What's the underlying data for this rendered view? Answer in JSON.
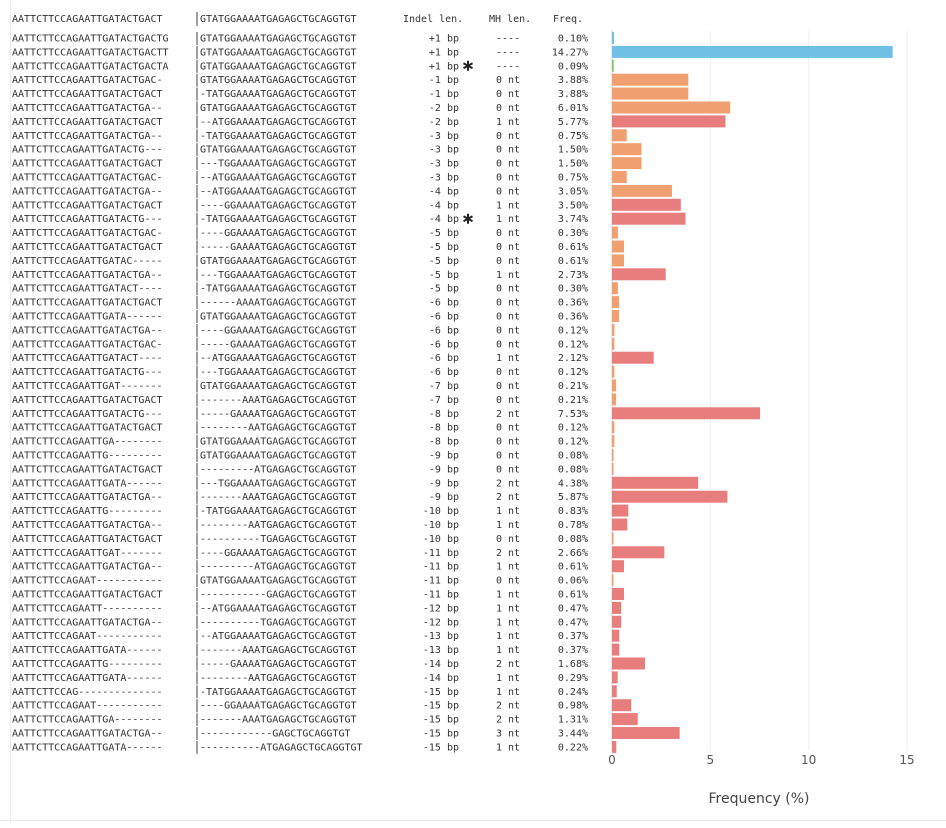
{
  "chart_data": {
    "type": "bar",
    "orientation": "horizontal",
    "header": {
      "left_seq": "AATTCTTCCAGAATTGATACTGACT",
      "right_seq": "GTATGGAAAATGAGAGCTGCAGGTGT",
      "indel": "Indel len.",
      "mh": "MH len.",
      "freq": "Freq."
    },
    "xlabel": "Frequency (%)",
    "xlim": [
      0,
      15
    ],
    "xticks": [
      0,
      5,
      10,
      15
    ],
    "grid": true,
    "colors": {
      "insertion": "#6ec1e4",
      "insertion_small": "#7ccc6e",
      "deletion_no_mh": "#f0a070",
      "deletion_mh": "#e87d7d"
    },
    "rows": [
      {
        "left": "AATTCTTCCAGAATTGATACTGACTG",
        "right": "GTATGGAAAATGAGAGCTGCAGGTGT",
        "indel": "+1 bp",
        "star": false,
        "mh": "----",
        "freq": "0.10%",
        "value": 0.1,
        "cls": "insertion"
      },
      {
        "left": "AATTCTTCCAGAATTGATACTGACTT",
        "right": "GTATGGAAAATGAGAGCTGCAGGTGT",
        "indel": "+1 bp",
        "star": false,
        "mh": "----",
        "freq": "14.27%",
        "value": 14.27,
        "cls": "insertion"
      },
      {
        "left": "AATTCTTCCAGAATTGATACTGACTA",
        "right": "GTATGGAAAATGAGAGCTGCAGGTGT",
        "indel": "+1 bp",
        "star": true,
        "mh": "----",
        "freq": "0.09%",
        "value": 0.09,
        "cls": "insertion_small"
      },
      {
        "left": "AATTCTTCCAGAATTGATACTGAC-",
        "right": "GTATGGAAAATGAGAGCTGCAGGTGT",
        "indel": "-1 bp",
        "star": false,
        "mh": "0 nt",
        "freq": "3.88%",
        "value": 3.88,
        "cls": "deletion_no_mh"
      },
      {
        "left": "AATTCTTCCAGAATTGATACTGACT",
        "right": "-TATGGAAAATGAGAGCTGCAGGTGT",
        "indel": "-1 bp",
        "star": false,
        "mh": "0 nt",
        "freq": "3.88%",
        "value": 3.88,
        "cls": "deletion_no_mh"
      },
      {
        "left": "AATTCTTCCAGAATTGATACTGA--",
        "right": "GTATGGAAAATGAGAGCTGCAGGTGT",
        "indel": "-2 bp",
        "star": false,
        "mh": "0 nt",
        "freq": "6.01%",
        "value": 6.01,
        "cls": "deletion_no_mh"
      },
      {
        "left": "AATTCTTCCAGAATTGATACTGACT",
        "right": "--ATGGAAAATGAGAGCTGCAGGTGT",
        "indel": "-2 bp",
        "star": false,
        "mh": "1 nt",
        "freq": "5.77%",
        "value": 5.77,
        "cls": "deletion_mh"
      },
      {
        "left": "AATTCTTCCAGAATTGATACTGA--",
        "right": "-TATGGAAAATGAGAGCTGCAGGTGT",
        "indel": "-3 bp",
        "star": false,
        "mh": "0 nt",
        "freq": "0.75%",
        "value": 0.75,
        "cls": "deletion_no_mh"
      },
      {
        "left": "AATTCTTCCAGAATTGATACTG---",
        "right": "GTATGGAAAATGAGAGCTGCAGGTGT",
        "indel": "-3 bp",
        "star": false,
        "mh": "0 nt",
        "freq": "1.50%",
        "value": 1.5,
        "cls": "deletion_no_mh"
      },
      {
        "left": "AATTCTTCCAGAATTGATACTGACT",
        "right": "---TGGAAAATGAGAGCTGCAGGTGT",
        "indel": "-3 bp",
        "star": false,
        "mh": "0 nt",
        "freq": "1.50%",
        "value": 1.5,
        "cls": "deletion_no_mh"
      },
      {
        "left": "AATTCTTCCAGAATTGATACTGAC-",
        "right": "--ATGGAAAATGAGAGCTGCAGGTGT",
        "indel": "-3 bp",
        "star": false,
        "mh": "0 nt",
        "freq": "0.75%",
        "value": 0.75,
        "cls": "deletion_no_mh"
      },
      {
        "left": "AATTCTTCCAGAATTGATACTGA--",
        "right": "--ATGGAAAATGAGAGCTGCAGGTGT",
        "indel": "-4 bp",
        "star": false,
        "mh": "0 nt",
        "freq": "3.05%",
        "value": 3.05,
        "cls": "deletion_no_mh"
      },
      {
        "left": "AATTCTTCCAGAATTGATACTGACT",
        "right": "----GGAAAATGAGAGCTGCAGGTGT",
        "indel": "-4 bp",
        "star": false,
        "mh": "1 nt",
        "freq": "3.50%",
        "value": 3.5,
        "cls": "deletion_mh"
      },
      {
        "left": "AATTCTTCCAGAATTGATACTG---",
        "right": "-TATGGAAAATGAGAGCTGCAGGTGT",
        "indel": "-4 bp",
        "star": true,
        "mh": "1 nt",
        "freq": "3.74%",
        "value": 3.74,
        "cls": "deletion_mh"
      },
      {
        "left": "AATTCTTCCAGAATTGATACTGAC-",
        "right": "----GGAAAATGAGAGCTGCAGGTGT",
        "indel": "-5 bp",
        "star": false,
        "mh": "0 nt",
        "freq": "0.30%",
        "value": 0.3,
        "cls": "deletion_no_mh"
      },
      {
        "left": "AATTCTTCCAGAATTGATACTGACT",
        "right": "-----GAAAATGAGAGCTGCAGGTGT",
        "indel": "-5 bp",
        "star": false,
        "mh": "0 nt",
        "freq": "0.61%",
        "value": 0.61,
        "cls": "deletion_no_mh"
      },
      {
        "left": "AATTCTTCCAGAATTGATAC-----",
        "right": "GTATGGAAAATGAGAGCTGCAGGTGT",
        "indel": "-5 bp",
        "star": false,
        "mh": "0 nt",
        "freq": "0.61%",
        "value": 0.61,
        "cls": "deletion_no_mh"
      },
      {
        "left": "AATTCTTCCAGAATTGATACTGA--",
        "right": "---TGGAAAATGAGAGCTGCAGGTGT",
        "indel": "-5 bp",
        "star": false,
        "mh": "1 nt",
        "freq": "2.73%",
        "value": 2.73,
        "cls": "deletion_mh"
      },
      {
        "left": "AATTCTTCCAGAATTGATACT----",
        "right": "-TATGGAAAATGAGAGCTGCAGGTGT",
        "indel": "-5 bp",
        "star": false,
        "mh": "0 nt",
        "freq": "0.30%",
        "value": 0.3,
        "cls": "deletion_no_mh"
      },
      {
        "left": "AATTCTTCCAGAATTGATACTGACT",
        "right": "------AAAATGAGAGCTGCAGGTGT",
        "indel": "-6 bp",
        "star": false,
        "mh": "0 nt",
        "freq": "0.36%",
        "value": 0.36,
        "cls": "deletion_no_mh"
      },
      {
        "left": "AATTCTTCCAGAATTGATA------",
        "right": "GTATGGAAAATGAGAGCTGCAGGTGT",
        "indel": "-6 bp",
        "star": false,
        "mh": "0 nt",
        "freq": "0.36%",
        "value": 0.36,
        "cls": "deletion_no_mh"
      },
      {
        "left": "AATTCTTCCAGAATTGATACTGA--",
        "right": "----GGAAAATGAGAGCTGCAGGTGT",
        "indel": "-6 bp",
        "star": false,
        "mh": "0 nt",
        "freq": "0.12%",
        "value": 0.12,
        "cls": "deletion_no_mh"
      },
      {
        "left": "AATTCTTCCAGAATTGATACTGAC-",
        "right": "-----GAAAATGAGAGCTGCAGGTGT",
        "indel": "-6 bp",
        "star": false,
        "mh": "0 nt",
        "freq": "0.12%",
        "value": 0.12,
        "cls": "deletion_no_mh"
      },
      {
        "left": "AATTCTTCCAGAATTGATACT----",
        "right": "--ATGGAAAATGAGAGCTGCAGGTGT",
        "indel": "-6 bp",
        "star": false,
        "mh": "1 nt",
        "freq": "2.12%",
        "value": 2.12,
        "cls": "deletion_mh"
      },
      {
        "left": "AATTCTTCCAGAATTGATACTG---",
        "right": "---TGGAAAATGAGAGCTGCAGGTGT",
        "indel": "-6 bp",
        "star": false,
        "mh": "0 nt",
        "freq": "0.12%",
        "value": 0.12,
        "cls": "deletion_no_mh"
      },
      {
        "left": "AATTCTTCCAGAATTGAT-------",
        "right": "GTATGGAAAATGAGAGCTGCAGGTGT",
        "indel": "-7 bp",
        "star": false,
        "mh": "0 nt",
        "freq": "0.21%",
        "value": 0.21,
        "cls": "deletion_no_mh"
      },
      {
        "left": "AATTCTTCCAGAATTGATACTGACT",
        "right": "-------AAATGAGAGCTGCAGGTGT",
        "indel": "-7 bp",
        "star": false,
        "mh": "0 nt",
        "freq": "0.21%",
        "value": 0.21,
        "cls": "deletion_no_mh"
      },
      {
        "left": "AATTCTTCCAGAATTGATACTG---",
        "right": "-----GAAAATGAGAGCTGCAGGTGT",
        "indel": "-8 bp",
        "star": false,
        "mh": "2 nt",
        "freq": "7.53%",
        "value": 7.53,
        "cls": "deletion_mh"
      },
      {
        "left": "AATTCTTCCAGAATTGATACTGACT",
        "right": "--------AATGAGAGCTGCAGGTGT",
        "indel": "-8 bp",
        "star": false,
        "mh": "0 nt",
        "freq": "0.12%",
        "value": 0.12,
        "cls": "deletion_no_mh"
      },
      {
        "left": "AATTCTTCCAGAATTGA--------",
        "right": "GTATGGAAAATGAGAGCTGCAGGTGT",
        "indel": "-8 bp",
        "star": false,
        "mh": "0 nt",
        "freq": "0.12%",
        "value": 0.12,
        "cls": "deletion_no_mh"
      },
      {
        "left": "AATTCTTCCAGAATTG---------",
        "right": "GTATGGAAAATGAGAGCTGCAGGTGT",
        "indel": "-9 bp",
        "star": false,
        "mh": "0 nt",
        "freq": "0.08%",
        "value": 0.08,
        "cls": "deletion_no_mh"
      },
      {
        "left": "AATTCTTCCAGAATTGATACTGACT",
        "right": "---------ATGAGAGCTGCAGGTGT",
        "indel": "-9 bp",
        "star": false,
        "mh": "0 nt",
        "freq": "0.08%",
        "value": 0.08,
        "cls": "deletion_no_mh"
      },
      {
        "left": "AATTCTTCCAGAATTGATA------",
        "right": "---TGGAAAATGAGAGCTGCAGGTGT",
        "indel": "-9 bp",
        "star": false,
        "mh": "2 nt",
        "freq": "4.38%",
        "value": 4.38,
        "cls": "deletion_mh"
      },
      {
        "left": "AATTCTTCCAGAATTGATACTGA--",
        "right": "-------AAATGAGAGCTGCAGGTGT",
        "indel": "-9 bp",
        "star": false,
        "mh": "2 nt",
        "freq": "5.87%",
        "value": 5.87,
        "cls": "deletion_mh"
      },
      {
        "left": "AATTCTTCCAGAATTG---------",
        "right": "-TATGGAAAATGAGAGCTGCAGGTGT",
        "indel": "-10 bp",
        "star": false,
        "mh": "1 nt",
        "freq": "0.83%",
        "value": 0.83,
        "cls": "deletion_mh"
      },
      {
        "left": "AATTCTTCCAGAATTGATACTGA--",
        "right": "--------AATGAGAGCTGCAGGTGT",
        "indel": "-10 bp",
        "star": false,
        "mh": "1 nt",
        "freq": "0.78%",
        "value": 0.78,
        "cls": "deletion_mh"
      },
      {
        "left": "AATTCTTCCAGAATTGATACTGACT",
        "right": "----------TGAGAGCTGCAGGTGT",
        "indel": "-10 bp",
        "star": false,
        "mh": "0 nt",
        "freq": "0.08%",
        "value": 0.08,
        "cls": "deletion_no_mh"
      },
      {
        "left": "AATTCTTCCAGAATTGAT-------",
        "right": "----GGAAAATGAGAGCTGCAGGTGT",
        "indel": "-11 bp",
        "star": false,
        "mh": "2 nt",
        "freq": "2.66%",
        "value": 2.66,
        "cls": "deletion_mh"
      },
      {
        "left": "AATTCTTCCAGAATTGATACTGA--",
        "right": "---------ATGAGAGCTGCAGGTGT",
        "indel": "-11 bp",
        "star": false,
        "mh": "1 nt",
        "freq": "0.61%",
        "value": 0.61,
        "cls": "deletion_mh"
      },
      {
        "left": "AATTCTTCCAGAAT-----------",
        "right": "GTATGGAAAATGAGAGCTGCAGGTGT",
        "indel": "-11 bp",
        "star": false,
        "mh": "0 nt",
        "freq": "0.06%",
        "value": 0.06,
        "cls": "deletion_no_mh"
      },
      {
        "left": "AATTCTTCCAGAATTGATACTGACT",
        "right": "-----------GAGAGCTGCAGGTGT",
        "indel": "-11 bp",
        "star": false,
        "mh": "1 nt",
        "freq": "0.61%",
        "value": 0.61,
        "cls": "deletion_mh"
      },
      {
        "left": "AATTCTTCCAGAATT----------",
        "right": "--ATGGAAAATGAGAGCTGCAGGTGT",
        "indel": "-12 bp",
        "star": false,
        "mh": "1 nt",
        "freq": "0.47%",
        "value": 0.47,
        "cls": "deletion_mh"
      },
      {
        "left": "AATTCTTCCAGAATTGATACTGA--",
        "right": "----------TGAGAGCTGCAGGTGT",
        "indel": "-12 bp",
        "star": false,
        "mh": "1 nt",
        "freq": "0.47%",
        "value": 0.47,
        "cls": "deletion_mh"
      },
      {
        "left": "AATTCTTCCAGAAT-----------",
        "right": "--ATGGAAAATGAGAGCTGCAGGTGT",
        "indel": "-13 bp",
        "star": false,
        "mh": "1 nt",
        "freq": "0.37%",
        "value": 0.37,
        "cls": "deletion_mh"
      },
      {
        "left": "AATTCTTCCAGAATTGATA------",
        "right": "-------AAATGAGAGCTGCAGGTGT",
        "indel": "-13 bp",
        "star": false,
        "mh": "1 nt",
        "freq": "0.37%",
        "value": 0.37,
        "cls": "deletion_mh"
      },
      {
        "left": "AATTCTTCCAGAATTG---------",
        "right": "-----GAAAATGAGAGCTGCAGGTGT",
        "indel": "-14 bp",
        "star": false,
        "mh": "2 nt",
        "freq": "1.68%",
        "value": 1.68,
        "cls": "deletion_mh"
      },
      {
        "left": "AATTCTTCCAGAATTGATA------",
        "right": "--------AATGAGAGCTGCAGGTGT",
        "indel": "-14 bp",
        "star": false,
        "mh": "1 nt",
        "freq": "0.29%",
        "value": 0.29,
        "cls": "deletion_mh"
      },
      {
        "left": "AATTCTTCCAG--------------",
        "right": "-TATGGAAAATGAGAGCTGCAGGTGT",
        "indel": "-15 bp",
        "star": false,
        "mh": "1 nt",
        "freq": "0.24%",
        "value": 0.24,
        "cls": "deletion_mh"
      },
      {
        "left": "AATTCTTCCAGAAT-----------",
        "right": "----GGAAAATGAGAGCTGCAGGTGT",
        "indel": "-15 bp",
        "star": false,
        "mh": "2 nt",
        "freq": "0.98%",
        "value": 0.98,
        "cls": "deletion_mh"
      },
      {
        "left": "AATTCTTCCAGAATTGA--------",
        "right": "-------AAATGAGAGCTGCAGGTGT",
        "indel": "-15 bp",
        "star": false,
        "mh": "2 nt",
        "freq": "1.31%",
        "value": 1.31,
        "cls": "deletion_mh"
      },
      {
        "left": "AATTCTTCCAGAATTGATACTGA--",
        "right": "------------GAGCTGCAGGTGT",
        "indel": "-15 bp",
        "star": false,
        "mh": "3 nt",
        "freq": "3.44%",
        "value": 3.44,
        "cls": "deletion_mh"
      },
      {
        "left": "AATTCTTCCAGAATTGATA------",
        "right": "----------ATGAGAGCTGCAGGTGT",
        "indel": "-15 bp",
        "star": false,
        "mh": "1 nt",
        "freq": "0.22%",
        "value": 0.22,
        "cls": "deletion_mh"
      }
    ]
  }
}
